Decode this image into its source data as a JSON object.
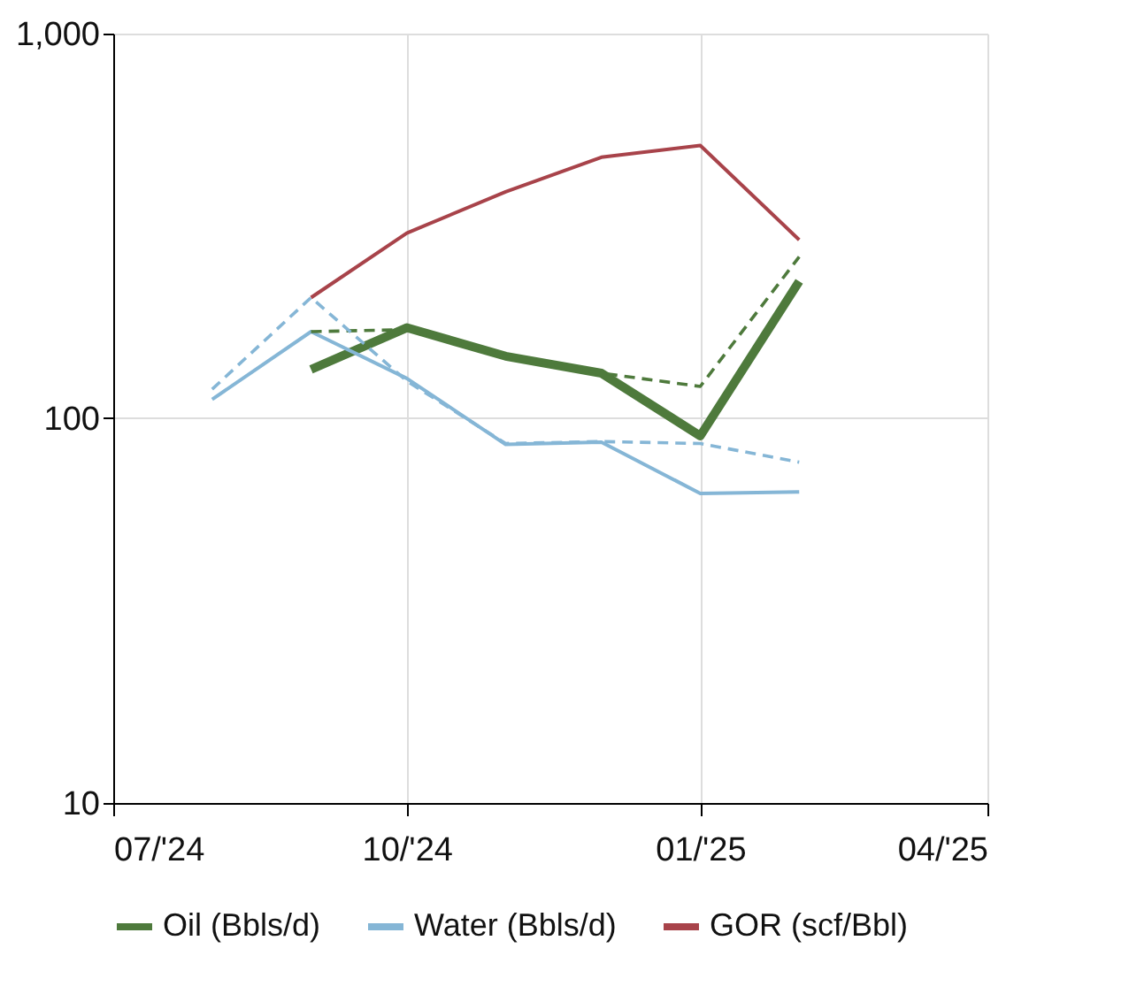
{
  "chart_data": {
    "type": "line",
    "x": [
      "2024-08-01",
      "2024-09-01",
      "2024-10-01",
      "2024-11-01",
      "2024-12-01",
      "2025-01-01",
      "2025-02-01"
    ],
    "series": [
      {
        "name": "Oil (Bbls/d)",
        "color": "#4e7a3c",
        "values": [
          null,
          134,
          172,
          145,
          131,
          90,
          227
        ]
      },
      {
        "name": "Water (Bbls/d)",
        "color": "#85b6d6",
        "values": [
          112,
          168,
          127,
          85.5,
          86.7,
          63.8,
          64.4
        ]
      },
      {
        "name": "GOR (scf/Bbl)",
        "color": "#a8434a",
        "values": [
          null,
          206,
          303,
          388,
          477,
          512,
          291
        ]
      },
      {
        "color": "#4e7a3c",
        "line_style": "dashed",
        "values": [
          null,
          168,
          170,
          145,
          131,
          121,
          263
        ]
      },
      {
        "color": "#85b6d6",
        "line_style": "dashed",
        "values": [
          119,
          206,
          125,
          86,
          87,
          86,
          76.9
        ]
      }
    ],
    "log": "y",
    "ylim": [
      10,
      1000
    ],
    "yticks": [
      10,
      100,
      {
        "value": 1000,
        "label": "1,000"
      }
    ],
    "xlim": [
      "2024-07-01",
      "2025-04-01"
    ],
    "xticks": [
      {
        "value": "2024-07-01",
        "label": "07/'24"
      },
      {
        "value": "2024-10-01",
        "label": "10/'24"
      },
      {
        "value": "2025-01-01",
        "label": "01/'25"
      },
      {
        "value": "2025-04-01",
        "label": "04/'25"
      }
    ],
    "grid": true,
    "legend": "bottom",
    "line_style": "solid"
  }
}
